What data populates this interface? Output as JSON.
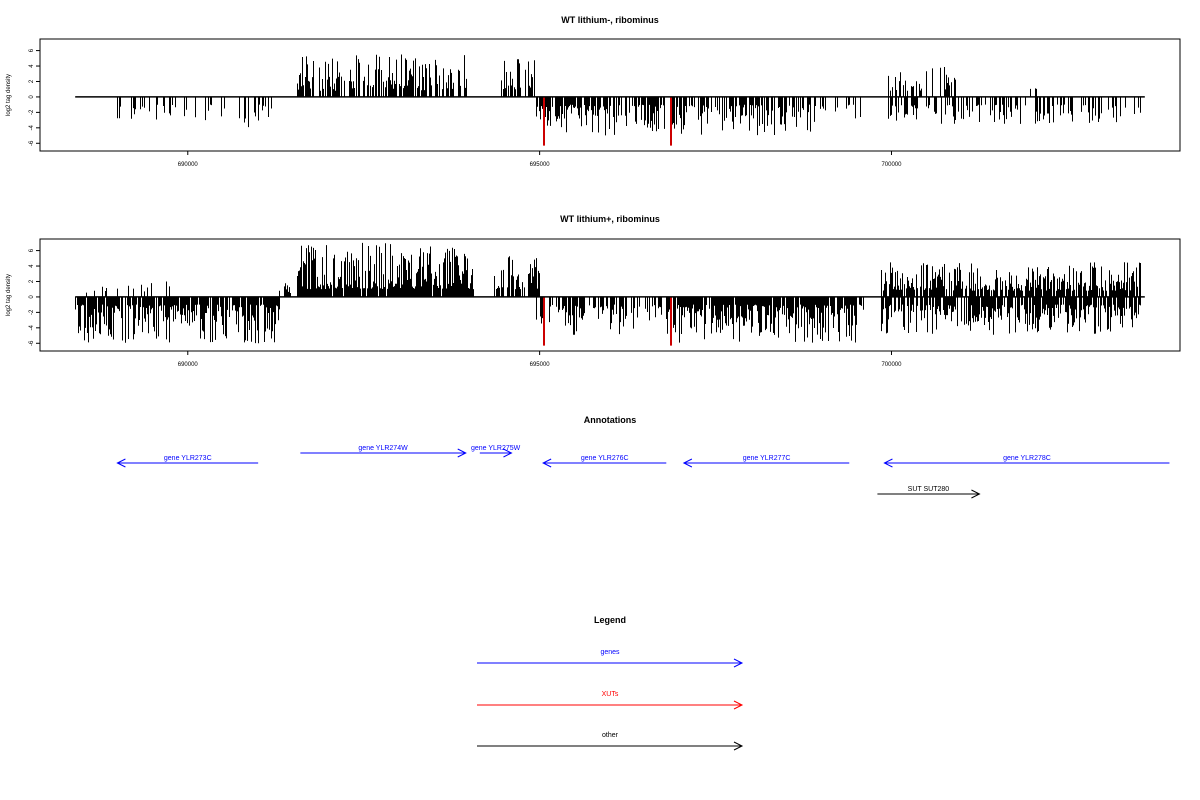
{
  "panels": {
    "top": {
      "title": "WT lithium-, ribominus"
    },
    "bottom": {
      "title": "WT lithium+, ribominus"
    }
  },
  "annotations": {
    "title": "Annotations",
    "features": [
      {
        "label": "gene YLR273C",
        "start": 689000,
        "end": 691000,
        "strand": "-",
        "kind": "genes"
      },
      {
        "label": "gene YLR274W",
        "start": 691600,
        "end": 693950,
        "strand": "+",
        "kind": "genes"
      },
      {
        "label": "gene YLR275W",
        "start": 694150,
        "end": 694600,
        "strand": "+",
        "kind": "genes"
      },
      {
        "label": "gene YLR276C",
        "start": 695050,
        "end": 696800,
        "strand": "-",
        "kind": "genes"
      },
      {
        "label": "gene YLR277C",
        "start": 697050,
        "end": 699400,
        "strand": "-",
        "kind": "genes"
      },
      {
        "label": "gene YLR278C",
        "start": 699900,
        "end": 703950,
        "strand": "-",
        "kind": "genes"
      },
      {
        "label": "SUT SUT280",
        "start": 699800,
        "end": 701250,
        "strand": "+",
        "kind": "other"
      }
    ]
  },
  "legend": {
    "title": "Legend",
    "items": [
      {
        "label": "genes",
        "color": "#0000ff"
      },
      {
        "label": "XUTs",
        "color": "#ff0000"
      },
      {
        "label": "other",
        "color": "#000000"
      }
    ]
  },
  "chart_data": [
    {
      "type": "bar",
      "title": "WT lithium-, ribominus",
      "ylabel": "log2 tag density",
      "xlim": [
        687900,
        704100
      ],
      "ylim": [
        -7,
        7.5
      ],
      "xticks": [
        690000,
        695000,
        700000
      ],
      "xtick_labels": [
        "690000",
        "695000",
        "700000"
      ],
      "yticks": [
        -6,
        -4,
        -2,
        0,
        2,
        4,
        6
      ],
      "ytick_labels": [
        "-6",
        "-4",
        "-2",
        "0",
        "2",
        "4",
        "6"
      ],
      "baseline_range": [
        688400,
        703600
      ],
      "segments": [
        {
          "start": 688950,
          "end": 691200,
          "strand": "neg",
          "density": 0.22,
          "min": 1.0,
          "max": 4.0,
          "seed": 11
        },
        {
          "start": 691550,
          "end": 694000,
          "strand": "pos",
          "density": 0.65,
          "min": 0.8,
          "max": 5.5,
          "seed": 12
        },
        {
          "start": 694450,
          "end": 694950,
          "strand": "pos",
          "density": 0.6,
          "min": 1.0,
          "max": 5.0,
          "seed": 13
        },
        {
          "start": 694950,
          "end": 698900,
          "strand": "neg",
          "density": 0.7,
          "min": 1.0,
          "max": 5.0,
          "seed": 14
        },
        {
          "start": 698900,
          "end": 699550,
          "strand": "neg",
          "density": 0.25,
          "min": 1.0,
          "max": 3.0,
          "seed": 15
        },
        {
          "start": 699950,
          "end": 700900,
          "strand": "pos",
          "density": 0.45,
          "min": 0.8,
          "max": 4.0,
          "seed": 16
        },
        {
          "start": 699950,
          "end": 703550,
          "strand": "neg",
          "density": 0.4,
          "min": 1.0,
          "max": 3.5,
          "seed": 17
        },
        {
          "start": 701900,
          "end": 702150,
          "strand": "pos",
          "density": 0.1,
          "min": 1.0,
          "max": 2.5,
          "seed": 18
        }
      ],
      "highlights": [
        {
          "x": 695050,
          "y": -6.3,
          "color": "#cc0000"
        },
        {
          "x": 696850,
          "y": -6.3,
          "color": "#cc0000"
        }
      ]
    },
    {
      "type": "bar",
      "title": "WT lithium+, ribominus",
      "ylabel": "log2 tag density",
      "xlim": [
        687900,
        704100
      ],
      "ylim": [
        -7,
        7.5
      ],
      "xticks": [
        690000,
        695000,
        700000
      ],
      "xtick_labels": [
        "690000",
        "695000",
        "700000"
      ],
      "yticks": [
        -6,
        -4,
        -2,
        0,
        2,
        4,
        6
      ],
      "ytick_labels": [
        "-6",
        "-4",
        "-2",
        "0",
        "2",
        "4",
        "6"
      ],
      "baseline_range": [
        688400,
        703600
      ],
      "segments": [
        {
          "start": 688400,
          "end": 689800,
          "strand": "pos",
          "density": 0.12,
          "min": 0.5,
          "max": 2.0,
          "seed": 21
        },
        {
          "start": 688400,
          "end": 691300,
          "strand": "neg",
          "density": 0.85,
          "min": 1.0,
          "max": 6.0,
          "seed": 22
        },
        {
          "start": 691300,
          "end": 691600,
          "strand": "pos",
          "density": 0.3,
          "min": 0.5,
          "max": 2.0,
          "seed": 23
        },
        {
          "start": 691550,
          "end": 694050,
          "strand": "pos",
          "density": 0.95,
          "min": 1.0,
          "max": 7.0,
          "seed": 24
        },
        {
          "start": 694350,
          "end": 695000,
          "strand": "pos",
          "density": 0.75,
          "min": 1.0,
          "max": 5.5,
          "seed": 25
        },
        {
          "start": 694950,
          "end": 696900,
          "strand": "neg",
          "density": 0.55,
          "min": 1.0,
          "max": 5.0,
          "seed": 26
        },
        {
          "start": 696900,
          "end": 699600,
          "strand": "neg",
          "density": 0.9,
          "min": 1.0,
          "max": 6.0,
          "seed": 27
        },
        {
          "start": 699850,
          "end": 703550,
          "strand": "pos",
          "density": 0.8,
          "min": 0.8,
          "max": 4.5,
          "seed": 28
        },
        {
          "start": 699850,
          "end": 703550,
          "strand": "neg",
          "density": 0.8,
          "min": 1.0,
          "max": 5.0,
          "seed": 29
        }
      ],
      "highlights": [
        {
          "x": 695050,
          "y": -6.3,
          "color": "#cc0000"
        },
        {
          "x": 696850,
          "y": -6.3,
          "color": "#cc0000"
        }
      ]
    }
  ]
}
